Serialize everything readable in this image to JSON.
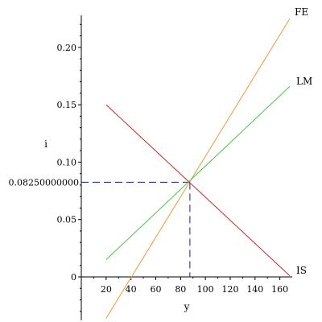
{
  "chart_data": {
    "type": "line",
    "title": "",
    "xlabel": "y",
    "ylabel": "i",
    "xlim": [
      0,
      170
    ],
    "ylim": [
      -0.035,
      0.225
    ],
    "x_ticks": [
      20,
      40,
      60,
      80,
      100,
      120,
      140,
      160
    ],
    "y_ticks": [
      0,
      0.05,
      0.1,
      0.15,
      0.2
    ],
    "y_tick_labels": [
      "0",
      "0.05",
      "0.10",
      "0.15",
      "0.20"
    ],
    "grid": false,
    "series": [
      {
        "name": "FE",
        "color": "#e89a3c",
        "x": [
          20,
          168
        ],
        "y": [
          -0.036,
          0.225
        ]
      },
      {
        "name": "LM",
        "color": "#4cc44c",
        "x": [
          20,
          168
        ],
        "y": [
          0.015,
          0.166
        ]
      },
      {
        "name": "IS",
        "color": "#cc2a2a",
        "x": [
          20,
          168
        ],
        "y": [
          0.15,
          0.001
        ]
      }
    ],
    "equilibrium": {
      "x": 87.5,
      "y": 0.0825,
      "label": "0.08250000000",
      "color": "#1a1aa0"
    }
  }
}
